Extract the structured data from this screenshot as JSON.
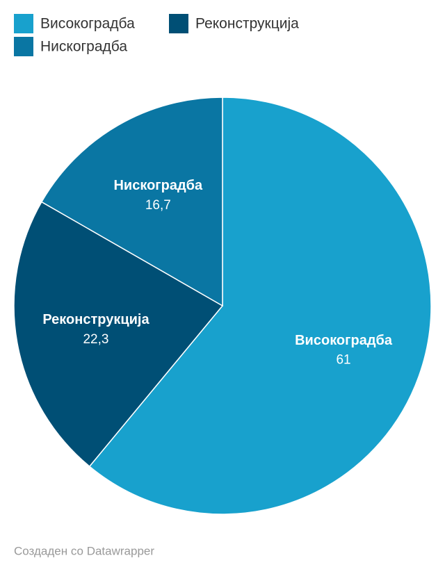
{
  "chart_data": {
    "type": "pie",
    "categories": [
      "Високоградба",
      "Реконструкција",
      "Нискоградба"
    ],
    "values": [
      61,
      22.3,
      16.7
    ],
    "value_labels": [
      "61",
      "22,3",
      "16,7"
    ],
    "colors": [
      "#18a1cd",
      "#004f75",
      "#0a76a3"
    ],
    "footer": "Создаден со Datawrapper"
  }
}
